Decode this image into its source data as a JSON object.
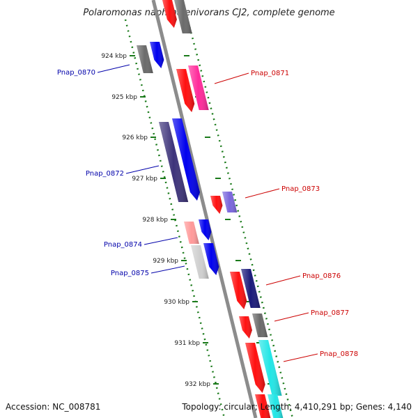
{
  "title": "Polaromonas naphthalenivorans CJ2, complete genome",
  "footer": {
    "accession": "Accession: NC_008781",
    "summary": "Topology: circular; Length: 4,410,291 bp; Genes: 4,140"
  },
  "colors": {
    "backbone": "#8c8c8c",
    "tick": "#1a7a1a",
    "forward_label": "#0000aa",
    "reverse_label": "#cc0000"
  },
  "kbp_ticks": [
    "924 kbp",
    "925 kbp",
    "926 kbp",
    "927 kbp",
    "928 kbp",
    "929 kbp",
    "930 kbp",
    "931 kbp",
    "932 kbp"
  ],
  "genes": [
    {
      "name": "Pnap_0870",
      "strand": "forward"
    },
    {
      "name": "Pnap_0871",
      "strand": "reverse"
    },
    {
      "name": "Pnap_0872",
      "strand": "forward"
    },
    {
      "name": "Pnap_0873",
      "strand": "reverse"
    },
    {
      "name": "Pnap_0874",
      "strand": "forward"
    },
    {
      "name": "Pnap_0875",
      "strand": "forward"
    },
    {
      "name": "Pnap_0876",
      "strand": "reverse"
    },
    {
      "name": "Pnap_0877",
      "strand": "reverse"
    },
    {
      "name": "Pnap_0878",
      "strand": "reverse"
    }
  ]
}
